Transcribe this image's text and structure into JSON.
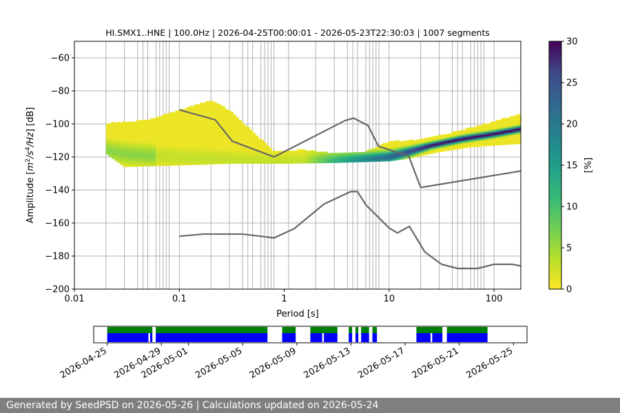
{
  "chart_data": [
    {
      "type": "heatmap",
      "title": "HI.SMX1..HNE | 100.0Hz | 2026-04-25T00:00:01 - 2026-05-23T22:30:03 | 1007 segments",
      "xlabel": "Period [s]",
      "ylabel_parts": {
        "pre": "Amplitude [",
        "m": "m",
        "exp1": "2",
        "s": "/s",
        "exp2": "4",
        "hz": "/Hz",
        "post": "] [dB]"
      },
      "x_scale": "log",
      "xlim": [
        0.01,
        180
      ],
      "ylim": [
        -200,
        -50
      ],
      "x_ticks": [
        {
          "value": 0.01,
          "label": "0.01"
        },
        {
          "value": 0.1,
          "label": "0.1"
        },
        {
          "value": 1,
          "label": "1"
        },
        {
          "value": 10,
          "label": "10"
        },
        {
          "value": 100,
          "label": "100"
        }
      ],
      "y_ticks": [
        {
          "value": -60,
          "label": "−60"
        },
        {
          "value": -80,
          "label": "−80"
        },
        {
          "value": -100,
          "label": "−100"
        },
        {
          "value": -120,
          "label": "−120"
        },
        {
          "value": -140,
          "label": "−140"
        },
        {
          "value": -160,
          "label": "−160"
        },
        {
          "value": -180,
          "label": "−180"
        },
        {
          "value": -200,
          "label": "−200"
        }
      ],
      "period_gridlines": [
        0.02,
        0.03,
        0.04,
        0.045,
        0.05,
        0.06,
        0.065,
        0.07,
        0.075,
        0.08,
        0.1,
        0.2,
        0.3,
        0.4,
        0.45,
        0.5,
        0.6,
        0.65,
        0.7,
        0.75,
        0.8,
        1.1,
        2,
        3,
        4,
        4.5,
        5,
        6,
        6.5,
        7,
        7.5,
        8,
        10,
        20,
        30,
        40,
        45,
        50,
        60,
        65,
        70,
        75,
        80,
        100
      ],
      "colorbar": {
        "label": "[%]",
        "min": 0,
        "max": 30,
        "ticks": [
          "0",
          "5",
          "10",
          "15",
          "20",
          "25",
          "30"
        ],
        "cmap": "viridis_r"
      },
      "density_band": {
        "x_start": 0.02,
        "x_end": 180,
        "mode": [
          {
            "x": 0.02,
            "y": -116
          },
          {
            "x": 0.03,
            "y": -118
          },
          {
            "x": 0.05,
            "y": -119
          },
          {
            "x": 0.1,
            "y": -120
          },
          {
            "x": 0.2,
            "y": -121
          },
          {
            "x": 0.4,
            "y": -122
          },
          {
            "x": 0.8,
            "y": -123
          },
          {
            "x": 1.5,
            "y": -123
          },
          {
            "x": 3,
            "y": -122.5
          },
          {
            "x": 6,
            "y": -121.5
          },
          {
            "x": 10,
            "y": -120
          },
          {
            "x": 15,
            "y": -117
          },
          {
            "x": 25,
            "y": -113
          },
          {
            "x": 50,
            "y": -109
          },
          {
            "x": 100,
            "y": -106
          },
          {
            "x": 180,
            "y": -103
          }
        ],
        "upper": [
          {
            "x": 0.02,
            "y": -100
          },
          {
            "x": 0.05,
            "y": -98
          },
          {
            "x": 0.1,
            "y": -92
          },
          {
            "x": 0.2,
            "y": -86
          },
          {
            "x": 0.3,
            "y": -92
          },
          {
            "x": 0.5,
            "y": -105
          },
          {
            "x": 0.8,
            "y": -117
          },
          {
            "x": 1.5,
            "y": -116
          },
          {
            "x": 3,
            "y": -118
          },
          {
            "x": 6,
            "y": -117
          },
          {
            "x": 10,
            "y": -111
          },
          {
            "x": 20,
            "y": -110
          },
          {
            "x": 50,
            "y": -104
          },
          {
            "x": 100,
            "y": -99
          },
          {
            "x": 180,
            "y": -94
          }
        ],
        "lower": [
          {
            "x": 0.02,
            "y": -118
          },
          {
            "x": 0.03,
            "y": -126
          },
          {
            "x": 0.1,
            "y": -125
          },
          {
            "x": 0.3,
            "y": -124
          },
          {
            "x": 1,
            "y": -124
          },
          {
            "x": 3,
            "y": -123.5
          },
          {
            "x": 10,
            "y": -122.5
          },
          {
            "x": 15,
            "y": -121
          },
          {
            "x": 30,
            "y": -117
          },
          {
            "x": 60,
            "y": -114
          },
          {
            "x": 100,
            "y": -113
          },
          {
            "x": 180,
            "y": -112
          }
        ]
      },
      "series": [
        {
          "line_color": "#666666",
          "points": [
            {
              "x": 0.1,
              "y": -91.5
            },
            {
              "x": 0.22,
              "y": -97.5
            },
            {
              "x": 0.32,
              "y": -110.5
            },
            {
              "x": 0.8,
              "y": -120
            },
            {
              "x": 3.8,
              "y": -98
            },
            {
              "x": 4.6,
              "y": -96.5
            },
            {
              "x": 6.3,
              "y": -101
            },
            {
              "x": 7.9,
              "y": -113.5
            },
            {
              "x": 15.4,
              "y": -119.5
            },
            {
              "x": 20,
              "y": -138.5
            },
            {
              "x": 180,
              "y": -128.5
            }
          ]
        },
        {
          "line_color": "#666666",
          "points": [
            {
              "x": 0.1,
              "y": -168
            },
            {
              "x": 0.17,
              "y": -166.7
            },
            {
              "x": 0.4,
              "y": -166.7
            },
            {
              "x": 0.8,
              "y": -169
            },
            {
              "x": 1.24,
              "y": -163.5
            },
            {
              "x": 2.4,
              "y": -148.5
            },
            {
              "x": 4.3,
              "y": -141
            },
            {
              "x": 5,
              "y": -141
            },
            {
              "x": 6,
              "y": -149
            },
            {
              "x": 10,
              "y": -163
            },
            {
              "x": 12,
              "y": -166
            },
            {
              "x": 15.6,
              "y": -162
            },
            {
              "x": 21.9,
              "y": -177.5
            },
            {
              "x": 31.6,
              "y": -185
            },
            {
              "x": 45,
              "y": -187.5
            },
            {
              "x": 70,
              "y": -187.5
            },
            {
              "x": 100,
              "y": -185
            },
            {
              "x": 150,
              "y": -185
            },
            {
              "x": 180,
              "y": -186
            }
          ]
        }
      ]
    },
    {
      "type": "timeline",
      "xlim": [
        "2026-04-24",
        "2026-05-26"
      ],
      "x_ticks": [
        "2026-04-25",
        "2026-04-29",
        "2026-05-01",
        "2026-05-05",
        "2026-05-09",
        "2026-05-13",
        "2026-05-17",
        "2026-05-21",
        "2026-05-25"
      ],
      "colors": {
        "top_row": "#008000",
        "bottom_row": "#0000ff"
      },
      "top_row_intervals": [
        [
          "2026-04-25",
          "2026-04-28 08:00"
        ],
        [
          "2026-04-28 14:00",
          "2026-05-06 20:00"
        ],
        [
          "2026-05-07 22:00",
          "2026-05-08 22:00"
        ],
        [
          "2026-05-10 00:00",
          "2026-05-12 00:00"
        ],
        [
          "2026-05-12 20:00",
          "2026-05-13 02:00"
        ],
        [
          "2026-05-13 08:00",
          "2026-05-13 13:00"
        ],
        [
          "2026-05-13 18:00",
          "2026-05-14 08:00"
        ],
        [
          "2026-05-14 14:00",
          "2026-05-14 22:00"
        ],
        [
          "2026-05-17 20:00",
          "2026-05-19 18:00"
        ],
        [
          "2026-05-20 02:00",
          "2026-05-23 02:00"
        ]
      ],
      "bottom_row_intervals": [
        [
          "2026-04-25",
          "2026-04-28 01:00"
        ],
        [
          "2026-04-28 04:00",
          "2026-04-28 08:00"
        ],
        [
          "2026-04-28 14:00",
          "2026-05-06 20:00"
        ],
        [
          "2026-05-07 22:00",
          "2026-05-08 22:00"
        ],
        [
          "2026-05-10 00:00",
          "2026-05-10 21:00"
        ],
        [
          "2026-05-11 00:00",
          "2026-05-12 00:00"
        ],
        [
          "2026-05-12 20:00",
          "2026-05-13 02:00"
        ],
        [
          "2026-05-13 08:00",
          "2026-05-13 13:00"
        ],
        [
          "2026-05-13 18:00",
          "2026-05-14 08:00"
        ],
        [
          "2026-05-14 14:00",
          "2026-05-14 22:00"
        ],
        [
          "2026-05-17 20:00",
          "2026-05-18 21:00"
        ],
        [
          "2026-05-19 00:00",
          "2026-05-19 18:00"
        ],
        [
          "2026-05-20 02:00",
          "2026-05-23 02:00"
        ]
      ]
    }
  ],
  "footer": {
    "text": "Generated by SeedPSD on 2026-05-26 | Calculations updated on 2026-05-24"
  }
}
